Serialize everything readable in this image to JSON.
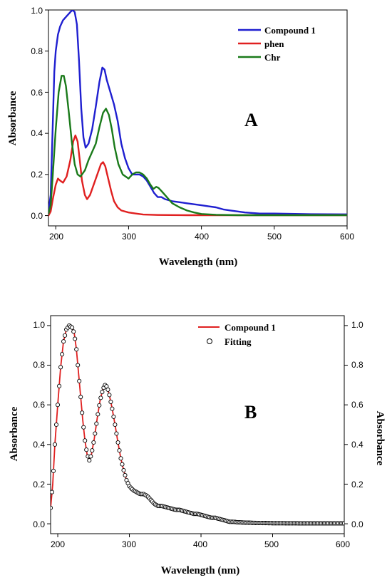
{
  "chart_data": [
    {
      "type": "line",
      "panel_label": "A",
      "xlabel": "Wavelength (nm)",
      "ylabel": "Absorbance",
      "xlim": [
        190,
        600
      ],
      "ylim": [
        -0.05,
        1.0
      ],
      "xticks": [
        "200",
        "300",
        "400",
        "500",
        "600"
      ],
      "yticks": [
        "0.0",
        "0.2",
        "0.4",
        "0.6",
        "0.8",
        "1.0"
      ],
      "legend_position": "top-right",
      "series": [
        {
          "name": "Compound 1",
          "color": "#1f1fd0",
          "points": [
            [
              190,
              0.02
            ],
            [
              193,
              0.1
            ],
            [
              196,
              0.45
            ],
            [
              198,
              0.7
            ],
            [
              200,
              0.8
            ],
            [
              203,
              0.88
            ],
            [
              206,
              0.92
            ],
            [
              210,
              0.95
            ],
            [
              215,
              0.97
            ],
            [
              220,
              0.99
            ],
            [
              223,
              1.0
            ],
            [
              226,
              0.99
            ],
            [
              229,
              0.93
            ],
            [
              232,
              0.75
            ],
            [
              235,
              0.52
            ],
            [
              238,
              0.38
            ],
            [
              241,
              0.33
            ],
            [
              245,
              0.35
            ],
            [
              250,
              0.42
            ],
            [
              255,
              0.53
            ],
            [
              260,
              0.65
            ],
            [
              264,
              0.72
            ],
            [
              267,
              0.71
            ],
            [
              270,
              0.66
            ],
            [
              275,
              0.6
            ],
            [
              280,
              0.54
            ],
            [
              285,
              0.46
            ],
            [
              290,
              0.35
            ],
            [
              295,
              0.28
            ],
            [
              300,
              0.23
            ],
            [
              305,
              0.2
            ],
            [
              310,
              0.2
            ],
            [
              315,
              0.2
            ],
            [
              320,
              0.19
            ],
            [
              325,
              0.17
            ],
            [
              330,
              0.14
            ],
            [
              335,
              0.11
            ],
            [
              340,
              0.09
            ],
            [
              345,
              0.09
            ],
            [
              350,
              0.08
            ],
            [
              360,
              0.07
            ],
            [
              370,
              0.065
            ],
            [
              380,
              0.06
            ],
            [
              390,
              0.055
            ],
            [
              400,
              0.05
            ],
            [
              410,
              0.045
            ],
            [
              420,
              0.04
            ],
            [
              430,
              0.03
            ],
            [
              440,
              0.025
            ],
            [
              450,
              0.02
            ],
            [
              460,
              0.015
            ],
            [
              480,
              0.01
            ],
            [
              500,
              0.01
            ],
            [
              550,
              0.007
            ],
            [
              600,
              0.006
            ]
          ]
        },
        {
          "name": "phen",
          "color": "#e02020",
          "points": [
            [
              190,
              0.0
            ],
            [
              193,
              0.02
            ],
            [
              196,
              0.08
            ],
            [
              200,
              0.15
            ],
            [
              203,
              0.18
            ],
            [
              206,
              0.17
            ],
            [
              210,
              0.16
            ],
            [
              215,
              0.19
            ],
            [
              220,
              0.27
            ],
            [
              224,
              0.36
            ],
            [
              227,
              0.39
            ],
            [
              230,
              0.36
            ],
            [
              233,
              0.27
            ],
            [
              236,
              0.17
            ],
            [
              240,
              0.1
            ],
            [
              243,
              0.08
            ],
            [
              247,
              0.1
            ],
            [
              252,
              0.15
            ],
            [
              257,
              0.2
            ],
            [
              262,
              0.25
            ],
            [
              265,
              0.26
            ],
            [
              268,
              0.24
            ],
            [
              272,
              0.18
            ],
            [
              276,
              0.12
            ],
            [
              280,
              0.07
            ],
            [
              285,
              0.04
            ],
            [
              290,
              0.025
            ],
            [
              300,
              0.015
            ],
            [
              310,
              0.01
            ],
            [
              320,
              0.005
            ],
            [
              340,
              0.003
            ],
            [
              380,
              0.002
            ],
            [
              450,
              0.002
            ],
            [
              600,
              0.002
            ]
          ]
        },
        {
          "name": "Chr",
          "color": "#1a7a1a",
          "points": [
            [
              190,
              0.01
            ],
            [
              193,
              0.05
            ],
            [
              196,
              0.2
            ],
            [
              200,
              0.42
            ],
            [
              204,
              0.6
            ],
            [
              208,
              0.68
            ],
            [
              211,
              0.68
            ],
            [
              214,
              0.63
            ],
            [
              218,
              0.5
            ],
            [
              222,
              0.36
            ],
            [
              226,
              0.25
            ],
            [
              230,
              0.2
            ],
            [
              234,
              0.19
            ],
            [
              240,
              0.22
            ],
            [
              245,
              0.27
            ],
            [
              250,
              0.31
            ],
            [
              255,
              0.35
            ],
            [
              260,
              0.43
            ],
            [
              265,
              0.5
            ],
            [
              269,
              0.52
            ],
            [
              273,
              0.49
            ],
            [
              277,
              0.42
            ],
            [
              281,
              0.33
            ],
            [
              286,
              0.25
            ],
            [
              292,
              0.2
            ],
            [
              300,
              0.18
            ],
            [
              305,
              0.2
            ],
            [
              310,
              0.21
            ],
            [
              315,
              0.21
            ],
            [
              320,
              0.2
            ],
            [
              325,
              0.18
            ],
            [
              330,
              0.15
            ],
            [
              334,
              0.13
            ],
            [
              338,
              0.14
            ],
            [
              341,
              0.135
            ],
            [
              345,
              0.12
            ],
            [
              350,
              0.1
            ],
            [
              355,
              0.08
            ],
            [
              360,
              0.06
            ],
            [
              370,
              0.04
            ],
            [
              380,
              0.025
            ],
            [
              390,
              0.015
            ],
            [
              400,
              0.008
            ],
            [
              420,
              0.004
            ],
            [
              450,
              0.002
            ],
            [
              500,
              0.002
            ],
            [
              600,
              0.002
            ]
          ]
        }
      ]
    },
    {
      "type": "line",
      "panel_label": "B",
      "xlabel": "Wavelength (nm)",
      "ylabel": "Absorbance",
      "ylabel_right": "Absorbance",
      "xlim": [
        190,
        600
      ],
      "ylim": [
        -0.05,
        1.05
      ],
      "xticks": [
        "200",
        "300",
        "400",
        "500",
        "600"
      ],
      "yticks": [
        "0.0",
        "0.2",
        "0.4",
        "0.6",
        "0.8",
        "1.0"
      ],
      "legend_position": "top-right",
      "series": [
        {
          "name": "Compound 1",
          "style": "line",
          "color": "#e02020",
          "points": [
            [
              190,
              0.08
            ],
            [
              193,
              0.2
            ],
            [
              196,
              0.4
            ],
            [
              200,
              0.6
            ],
            [
              204,
              0.79
            ],
            [
              208,
              0.92
            ],
            [
              212,
              0.98
            ],
            [
              216,
              1.0
            ],
            [
              220,
              0.99
            ],
            [
              223,
              0.96
            ],
            [
              226,
              0.88
            ],
            [
              229,
              0.76
            ],
            [
              232,
              0.64
            ],
            [
              235,
              0.52
            ],
            [
              238,
              0.42
            ],
            [
              241,
              0.35
            ],
            [
              244,
              0.32
            ],
            [
              247,
              0.35
            ],
            [
              251,
              0.43
            ],
            [
              255,
              0.53
            ],
            [
              259,
              0.62
            ],
            [
              263,
              0.68
            ],
            [
              266,
              0.7
            ],
            [
              269,
              0.69
            ],
            [
              272,
              0.65
            ],
            [
              276,
              0.58
            ],
            [
              280,
              0.5
            ],
            [
              284,
              0.41
            ],
            [
              288,
              0.33
            ],
            [
              292,
              0.27
            ],
            [
              296,
              0.22
            ],
            [
              300,
              0.19
            ],
            [
              305,
              0.17
            ],
            [
              310,
              0.16
            ],
            [
              315,
              0.15
            ],
            [
              320,
              0.15
            ],
            [
              325,
              0.14
            ],
            [
              330,
              0.12
            ],
            [
              335,
              0.1
            ],
            [
              340,
              0.09
            ],
            [
              345,
              0.09
            ],
            [
              350,
              0.085
            ],
            [
              355,
              0.08
            ],
            [
              360,
              0.075
            ],
            [
              365,
              0.07
            ],
            [
              370,
              0.07
            ],
            [
              375,
              0.065
            ],
            [
              380,
              0.06
            ],
            [
              385,
              0.055
            ],
            [
              390,
              0.05
            ],
            [
              395,
              0.05
            ],
            [
              400,
              0.045
            ],
            [
              405,
              0.04
            ],
            [
              410,
              0.035
            ],
            [
              415,
              0.03
            ],
            [
              420,
              0.03
            ],
            [
              425,
              0.025
            ],
            [
              430,
              0.02
            ],
            [
              435,
              0.015
            ],
            [
              440,
              0.01
            ],
            [
              445,
              0.01
            ],
            [
              450,
              0.008
            ],
            [
              460,
              0.006
            ],
            [
              480,
              0.004
            ],
            [
              500,
              0.003
            ],
            [
              550,
              0.002
            ],
            [
              600,
              0.002
            ]
          ]
        },
        {
          "name": "Fitting",
          "style": "markers",
          "color": "#000000",
          "marker": "open-circle"
        }
      ]
    }
  ]
}
